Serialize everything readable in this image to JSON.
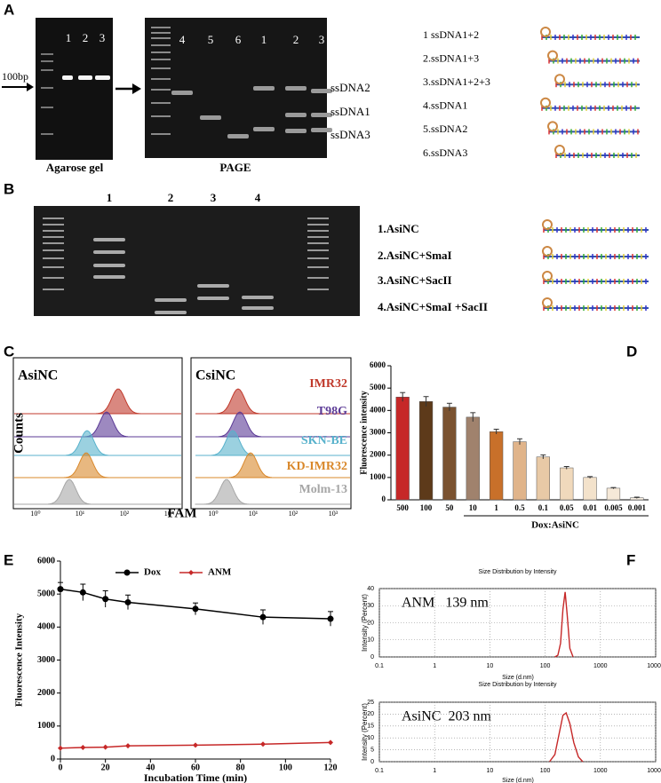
{
  "panel_a": {
    "label": "A",
    "gel1_lanes": [
      "1",
      "2",
      "3"
    ],
    "marker": "100bp",
    "gel1_title": "Agarose gel",
    "gel2_lanes": [
      "4",
      "5",
      "6",
      "1",
      "2",
      "3"
    ],
    "gel2_title": "PAGE",
    "band_labels": [
      "ssDNA2",
      "ssDNA1",
      "ssDNA3"
    ],
    "legend": [
      "1 ssDNA1+2",
      "2.ssDNA1+3",
      "3.ssDNA1+2+3",
      "4.ssDNA1",
      "5.ssDNA2",
      "6.ssDNA3"
    ]
  },
  "panel_b": {
    "label": "B",
    "lanes": [
      "1",
      "2",
      "3",
      "4"
    ],
    "legend": [
      "1.AsiNC",
      "2.AsiNC+SmaI",
      "3.AsiNC+SacII",
      "4.AsiNC+SmaI +SacII"
    ]
  },
  "panel_c": {
    "label": "C",
    "panels": [
      "AsiNC",
      "CsiNC"
    ],
    "samples": [
      {
        "name": "IMR32",
        "color": "#c0392b"
      },
      {
        "name": "T98G",
        "color": "#5b3a96"
      },
      {
        "name": "SKN-BE",
        "color": "#58b2cc"
      },
      {
        "name": "KD-IMR32",
        "color": "#d9882b"
      },
      {
        "name": "Molm-13",
        "color": "#a6a6a6"
      }
    ],
    "y_label": "Counts",
    "x_label": "FAM",
    "x_tick_labels": [
      "10⁰",
      "10¹",
      "10²",
      "10³"
    ]
  },
  "chart_data": [
    {
      "type": "bar",
      "label": "D",
      "y_label": "Fluorescence intensity",
      "x_label": "Dox:AsiNC",
      "categories": [
        "500",
        "100",
        "50",
        "10",
        "1",
        "0.5",
        "0.1",
        "0.05",
        "0.01",
        "0.005",
        "0.001"
      ],
      "values": [
        4600,
        4400,
        4150,
        3700,
        3050,
        2600,
        1920,
        1430,
        1000,
        520,
        90
      ],
      "errors": [
        200,
        220,
        170,
        200,
        110,
        130,
        90,
        60,
        40,
        30,
        30
      ],
      "colors": [
        "#c62828",
        "#5d3a1a",
        "#7a5230",
        "#a0826d",
        "#c8702a",
        "#e0b48a",
        "#e8c9a6",
        "#f0d9bc",
        "#f3e2cb",
        "#f6e9d8",
        "#f8efe2"
      ],
      "ylim": [
        0,
        6000
      ],
      "yticks": [
        0,
        1000,
        2000,
        3000,
        4000,
        5000,
        6000
      ]
    },
    {
      "type": "line",
      "label": "E",
      "y_label": "Fluorescence Intensity",
      "x_label": "Incubation Time (min)",
      "x": [
        0,
        10,
        20,
        30,
        60,
        90,
        120
      ],
      "series": [
        {
          "name": "Dox",
          "color": "#000000",
          "values": [
            5150,
            5050,
            4850,
            4750,
            4550,
            4300,
            4250
          ],
          "errors": [
            200,
            250,
            250,
            220,
            180,
            220,
            220
          ]
        },
        {
          "name": "ANM",
          "color": "#c62828",
          "values": [
            330,
            350,
            360,
            400,
            420,
            450,
            500
          ]
        }
      ],
      "xlim": [
        0,
        120
      ],
      "xticks": [
        0,
        20,
        40,
        60,
        80,
        100,
        120
      ],
      "ylim": [
        0,
        6000
      ],
      "yticks": [
        0,
        1000,
        2000,
        3000,
        4000,
        5000,
        6000
      ],
      "legend": "top-left"
    },
    {
      "type": "line",
      "label": "F",
      "title": "Size Distribution by Intensity",
      "y_label": "Intensity (Percent)",
      "x_label": "Size (d.nm)",
      "annotation": "ANM   139 nm",
      "xscale": "log",
      "grid": true,
      "x": [
        150,
        170,
        190,
        210,
        230,
        250,
        280,
        320
      ],
      "series": [
        {
          "color": "#c62828",
          "values": [
            0,
            1,
            8,
            28,
            38,
            25,
            5,
            0
          ]
        }
      ],
      "xlim": [
        0.1,
        10000
      ],
      "xticks": [
        0.1,
        1,
        10,
        100,
        1000,
        10000
      ],
      "ylim": [
        0,
        40
      ],
      "yticks": [
        0,
        10,
        20,
        30,
        40
      ]
    },
    {
      "type": "line",
      "title": "Size Distribution by Intensity",
      "y_label": "Intensity (Percent)",
      "x_label": "Size (d.nm)",
      "annotation": "AsiNC  203 nm",
      "xscale": "log",
      "grid": true,
      "x": [
        120,
        150,
        180,
        210,
        240,
        280,
        330,
        400,
        480
      ],
      "series": [
        {
          "color": "#c62828",
          "values": [
            0,
            3,
            12,
            19.5,
            20.5,
            16,
            8,
            2,
            0
          ]
        }
      ],
      "xlim": [
        0.1,
        10000
      ],
      "xticks": [
        0.1,
        1,
        10,
        100,
        1000,
        10000
      ],
      "ylim": [
        0,
        25
      ],
      "yticks": [
        0,
        5,
        10,
        15,
        20,
        25
      ]
    }
  ]
}
